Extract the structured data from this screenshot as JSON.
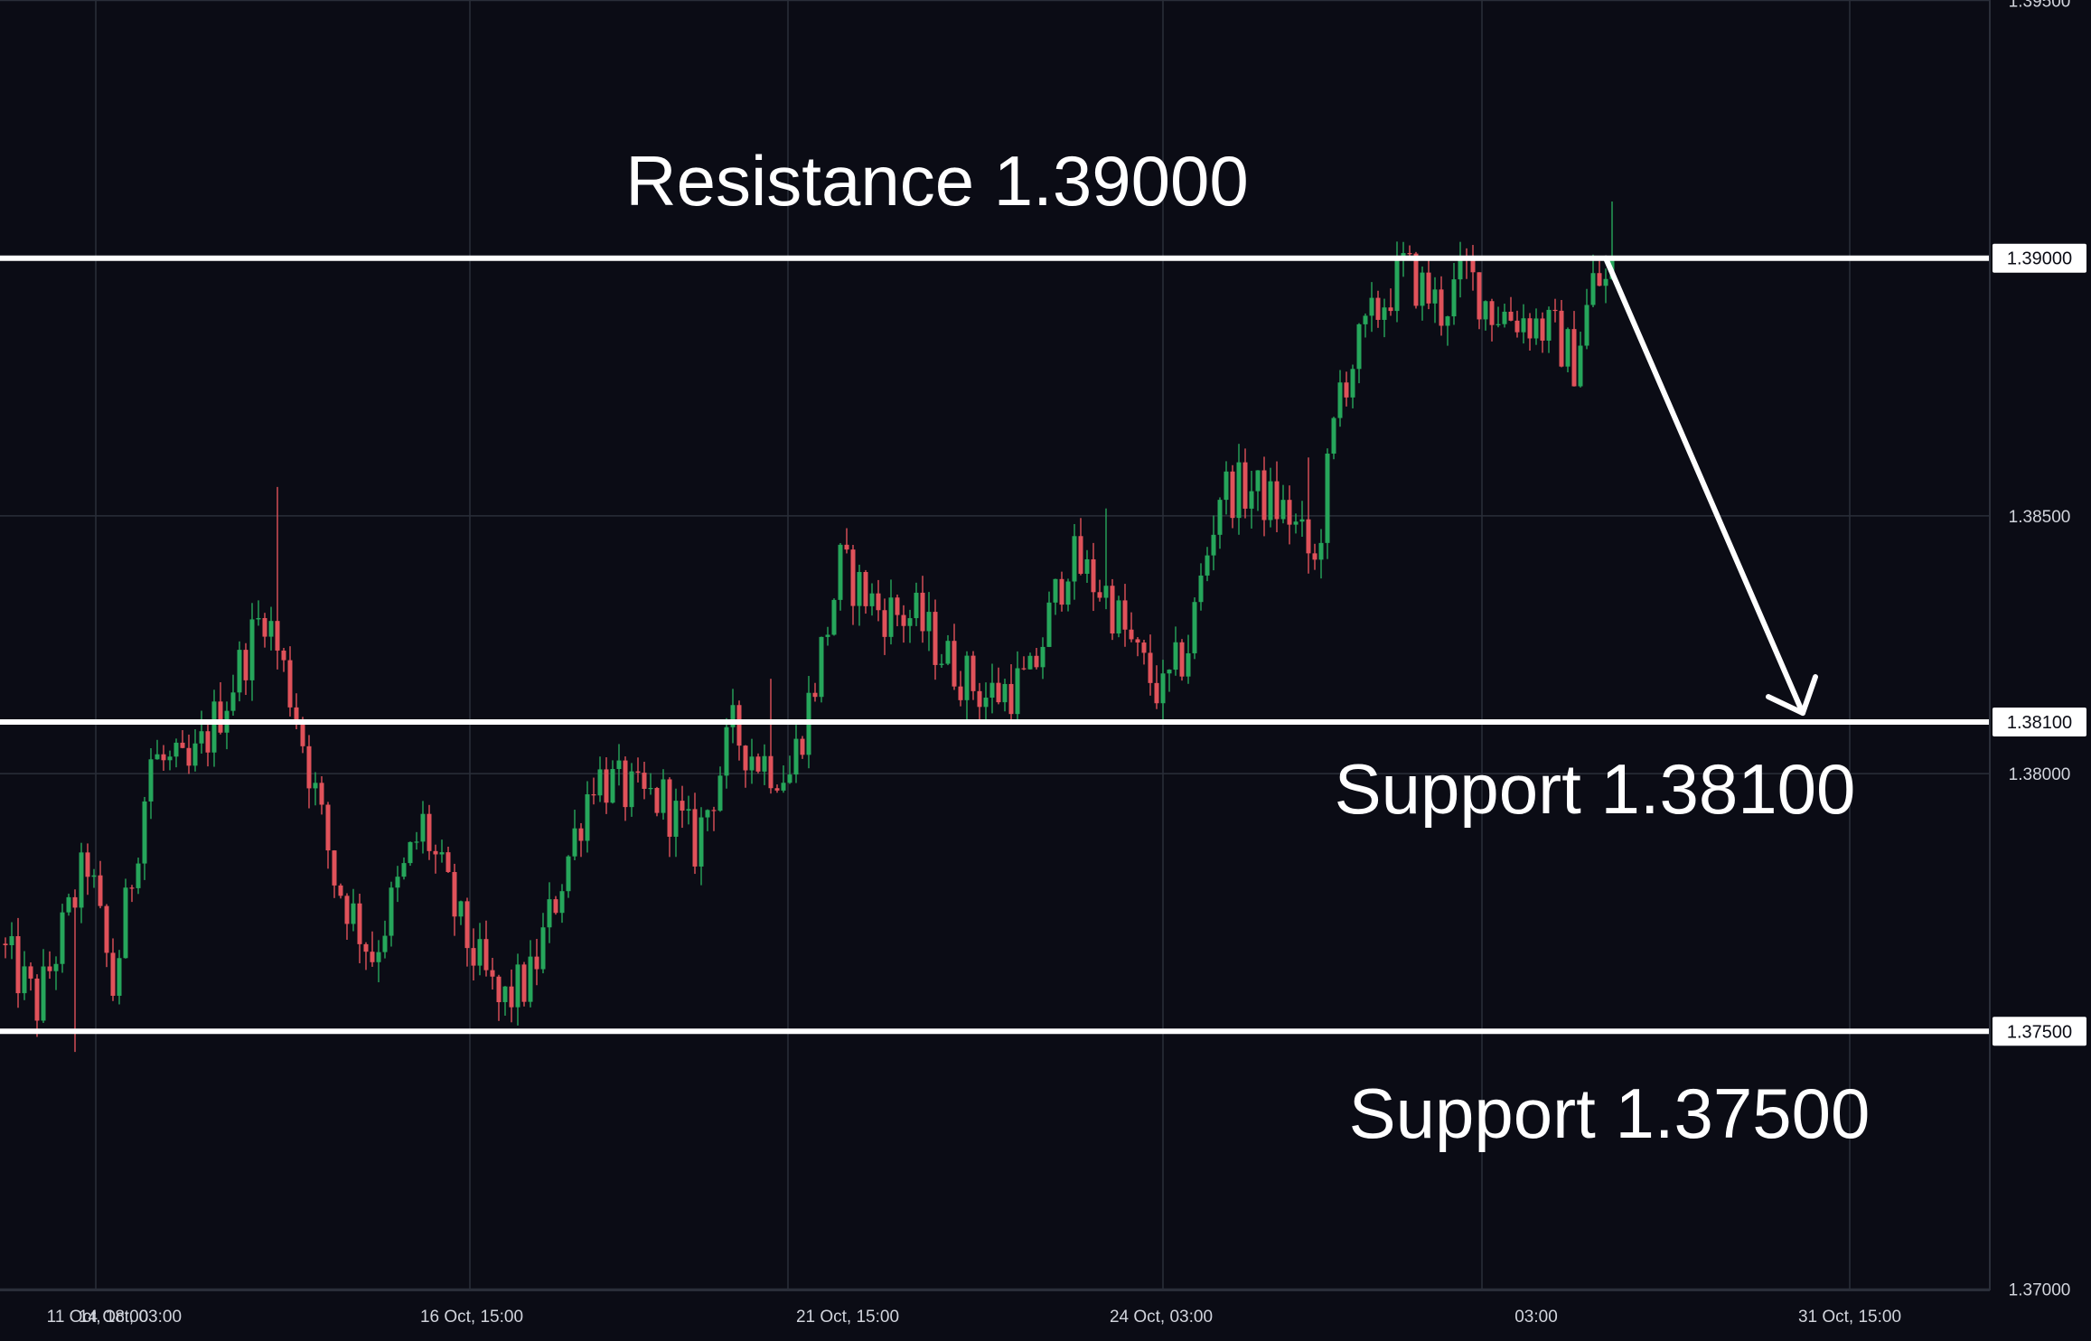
{
  "chart_data": {
    "type": "candlestick",
    "title": "",
    "colors": {
      "background": "#0b0c15",
      "grid": "#2a2e39",
      "up": "#26a65b",
      "down": "#e0525a",
      "level_line": "#ffffff",
      "axis_text": "#d1d4dc"
    },
    "ylim": [
      1.37,
      1.395
    ],
    "y_ticks": [
      "1.39500",
      "1.38500",
      "1.38000",
      "1.37000"
    ],
    "x_ticks": [
      "11 Oct, 18:00",
      "14 Oct, 03:00",
      "16 Oct, 15:00",
      "21 Oct, 15:00",
      "24 Oct, 03:00",
      "03:00",
      "31 Oct, 15:00"
    ],
    "levels": [
      {
        "name": "resistance",
        "value": 1.39,
        "tag": "1.39000",
        "label": "Resistance 1.39000"
      },
      {
        "name": "support-1",
        "value": 1.381,
        "tag": "1.38100",
        "label": "Support 1.38100"
      },
      {
        "name": "support-2",
        "value": 1.375,
        "tag": "1.37500",
        "label": "Support 1.37500"
      }
    ],
    "projection": {
      "from_value": 1.39,
      "to_value": 1.381
    },
    "anchors": [
      [
        0,
        1.3767
      ],
      [
        6,
        1.3755
      ],
      [
        14,
        1.3783
      ],
      [
        18,
        1.3758
      ],
      [
        24,
        1.3803
      ],
      [
        30,
        1.38
      ],
      [
        36,
        1.3815
      ],
      [
        42,
        1.3832
      ],
      [
        47,
        1.3812
      ],
      [
        53,
        1.378
      ],
      [
        59,
        1.3765
      ],
      [
        67,
        1.379
      ],
      [
        73,
        1.377
      ],
      [
        79,
        1.3755
      ],
      [
        82,
        1.3758
      ],
      [
        84,
        1.376
      ],
      [
        94,
        1.38
      ],
      [
        101,
        1.3795
      ],
      [
        105,
        1.3795
      ],
      [
        110,
        1.3786
      ],
      [
        116,
        1.3808
      ],
      [
        120,
        1.3803
      ],
      [
        125,
        1.38
      ],
      [
        129,
        1.3818
      ],
      [
        133,
        1.384
      ],
      [
        139,
        1.3832
      ],
      [
        145,
        1.383
      ],
      [
        150,
        1.3822
      ],
      [
        156,
        1.3815
      ],
      [
        163,
        1.3818
      ],
      [
        169,
        1.3842
      ],
      [
        175,
        1.3835
      ],
      [
        180,
        1.3822
      ],
      [
        184,
        1.3815
      ],
      [
        188,
        1.3825
      ],
      [
        193,
        1.3855
      ],
      [
        198,
        1.3855
      ],
      [
        204,
        1.385
      ],
      [
        208,
        1.384
      ],
      [
        212,
        1.3875
      ],
      [
        218,
        1.389
      ],
      [
        222,
        1.3898
      ],
      [
        228,
        1.389
      ],
      [
        232,
        1.3897
      ],
      [
        236,
        1.389
      ],
      [
        242,
        1.3888
      ],
      [
        246,
        1.3885
      ],
      [
        249,
        1.388
      ],
      [
        252,
        1.3895
      ]
    ]
  }
}
